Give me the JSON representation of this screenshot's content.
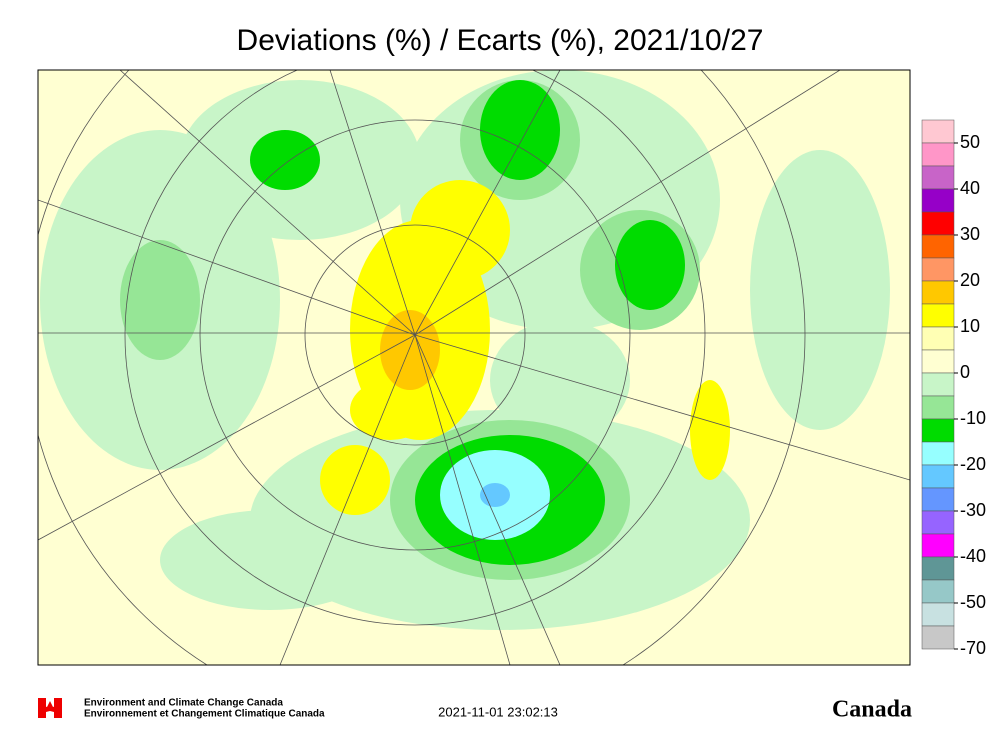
{
  "header": {
    "title": "Deviations (%) / Ecarts (%), 2021/10/27"
  },
  "colorbar": {
    "labels": [
      "50",
      "40",
      "30",
      "20",
      "10",
      "0",
      "-10",
      "-20",
      "-30",
      "-40",
      "-50",
      "-70"
    ],
    "colors": [
      "#ffc8d2",
      "#ff96c8",
      "#c864c8",
      "#9600c8",
      "#ff0000",
      "#ff6400",
      "#ff9664",
      "#ffc800",
      "#ffff00",
      "#ffffb4",
      "#ffffd2",
      "#c8f5c8",
      "#96e696",
      "#00dc00",
      "#96ffff",
      "#64c8ff",
      "#6496ff",
      "#9664ff",
      "#ff00ff",
      "#5f9696",
      "#96c8c8",
      "#c8e1e1",
      "#c8c8c8"
    ]
  },
  "footer": {
    "agency_en": "Environment and Climate Change Canada",
    "agency_fr": "Environnement et Changement Climatique Canada",
    "timestamp": "2021-11-01 23:02:13",
    "wordmark": "Canada"
  }
}
